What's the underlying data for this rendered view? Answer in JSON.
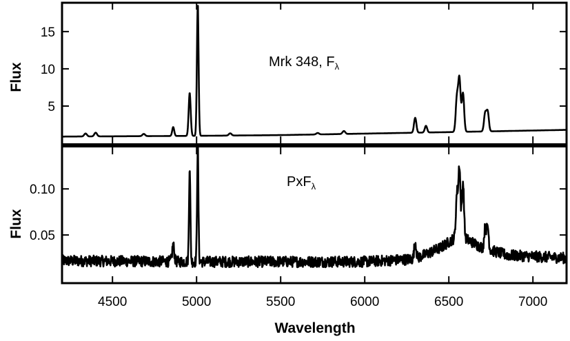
{
  "chart_data": {
    "type": "line",
    "xlabel": "Wavelength",
    "xlim": [
      4200,
      7200
    ],
    "x_ticks": [
      4500,
      5000,
      5500,
      6000,
      6500,
      7000
    ],
    "panels": [
      {
        "id": "top",
        "label_main": "Mrk 348, F",
        "label_sub": "λ",
        "ylabel": "Flux",
        "ylim": [
          0,
          18.5
        ],
        "y_ticks": [
          5,
          10,
          15
        ],
        "series": [
          {
            "continuum": [
              [
                4200,
                0.9
              ],
              [
                5000,
                1.0
              ],
              [
                5500,
                1.1
              ],
              [
                6000,
                1.3
              ],
              [
                6500,
                1.5
              ],
              [
                7200,
                1.8
              ]
            ],
            "lines": [
              {
                "x": 4340,
                "h": 0.4,
                "w": 8
              },
              {
                "x": 4400,
                "h": 0.5,
                "w": 8
              },
              {
                "x": 4686,
                "h": 0.3,
                "w": 8
              },
              {
                "x": 4861,
                "h": 1.2,
                "w": 6
              },
              {
                "x": 4959,
                "h": 5.8,
                "w": 6
              },
              {
                "x": 5007,
                "h": 17.8,
                "w": 5
              },
              {
                "x": 5200,
                "h": 0.3,
                "w": 8
              },
              {
                "x": 5720,
                "h": 0.2,
                "w": 8
              },
              {
                "x": 5876,
                "h": 0.4,
                "w": 8
              },
              {
                "x": 6300,
                "h": 2.0,
                "w": 7
              },
              {
                "x": 6364,
                "h": 0.9,
                "w": 7
              },
              {
                "x": 6548,
                "h": 4.5,
                "w": 7
              },
              {
                "x": 6563,
                "h": 7.0,
                "w": 7
              },
              {
                "x": 6584,
                "h": 5.2,
                "w": 7
              },
              {
                "x": 6716,
                "h": 2.4,
                "w": 7
              },
              {
                "x": 6731,
                "h": 2.6,
                "w": 7
              }
            ]
          }
        ]
      },
      {
        "id": "bottom",
        "label_main": "PxF",
        "label_sub": "λ",
        "ylabel": "Flux",
        "ylim": [
          0,
          0.145
        ],
        "y_ticks": [
          0.05,
          0.1
        ],
        "series": [
          {
            "continuum": [
              [
                4200,
                0.022
              ],
              [
                5000,
                0.021
              ],
              [
                5500,
                0.021
              ],
              [
                6000,
                0.021
              ],
              [
                6300,
                0.024
              ],
              [
                6450,
                0.036
              ],
              [
                6560,
                0.05
              ],
              [
                6700,
                0.036
              ],
              [
                6850,
                0.028
              ],
              [
                7200,
                0.025
              ]
            ],
            "noise": 0.006,
            "lines": [
              {
                "x": 4861,
                "h": 0.018,
                "w": 6
              },
              {
                "x": 4959,
                "h": 0.105,
                "w": 4
              },
              {
                "x": 5007,
                "h": 0.125,
                "w": 4
              },
              {
                "x": 6300,
                "h": 0.018,
                "w": 6
              },
              {
                "x": 6548,
                "h": 0.045,
                "w": 6
              },
              {
                "x": 6563,
                "h": 0.075,
                "w": 6
              },
              {
                "x": 6584,
                "h": 0.06,
                "w": 6
              },
              {
                "x": 6716,
                "h": 0.022,
                "w": 6
              },
              {
                "x": 6731,
                "h": 0.025,
                "w": 6
              }
            ]
          }
        ]
      }
    ],
    "grid": false
  }
}
